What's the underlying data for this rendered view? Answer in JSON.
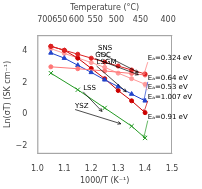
{
  "chart_data": {
    "type": "line",
    "xlabel": "1000/T (K⁻¹)",
    "ylabel": "Ln(σT) (SK cm⁻¹)",
    "x2label": "Temperature (°C)",
    "xlim": [
      1.0,
      1.5
    ],
    "ylim": [
      -2.5,
      5.0
    ],
    "x2lim": [
      1.0,
      1.5
    ],
    "xticks": [
      {
        "value": 1.0,
        "label": "1.0"
      },
      1.1,
      1.2,
      1.3,
      1.4,
      1.5
    ],
    "yticks": [
      {
        "value": -2,
        "label": "−2"
      },
      0,
      2,
      4
    ],
    "x2ticks": [
      {
        "value": 1.0275908,
        "label": "700"
      },
      {
        "value": 1.0832476,
        "label": "650"
      },
      {
        "value": 1.1452786,
        "label": "600"
      },
      {
        "value": 1.2148454,
        "label": "550"
      },
      {
        "value": 1.2934101,
        "label": "500"
      },
      {
        "value": 1.382839,
        "label": "450"
      },
      {
        "value": 1.485553,
        "label": "400"
      }
    ],
    "grid": false,
    "color": "#ffffff",
    "series": [
      {
        "color": "#dd2222",
        "marker": "circle",
        "line_style": "solid",
        "x": [
          1.05,
          1.1,
          1.15,
          1.2,
          1.25,
          1.3,
          1.35,
          1.4
        ],
        "values": [
          4.3,
          4.05,
          3.8,
          3.55,
          3.3,
          3.05,
          2.8,
          2.55
        ]
      },
      {
        "color": "#ff7777",
        "marker": "circle",
        "line_style": "solid",
        "x": [
          1.05,
          1.15,
          1.25,
          1.35,
          1.4
        ],
        "values": [
          3.0,
          2.88,
          2.74,
          2.58,
          2.48
        ]
      },
      {
        "color": "#2244cc",
        "marker": "triangle",
        "line_style": "solid",
        "x": [
          1.05,
          1.1,
          1.15,
          1.2,
          1.25,
          1.3,
          1.35,
          1.4
        ],
        "values": [
          3.88,
          3.55,
          3.1,
          2.65,
          2.18,
          1.75,
          1.28,
          0.85
        ]
      },
      {
        "color": "#cc0000",
        "marker": "circle",
        "line_style": "solid",
        "x": [
          1.05,
          1.1,
          1.15,
          1.2,
          1.25,
          1.3,
          1.35,
          1.4
        ],
        "values": [
          4.3,
          4.05,
          3.55,
          2.9,
          2.25,
          1.5,
          0.85,
          0.1
        ]
      },
      {
        "color": "#ff9999",
        "marker": "circle",
        "line_style": "solid",
        "x": [
          1.05,
          1.1,
          1.15,
          1.2,
          1.25,
          1.3,
          1.35,
          1.4
        ],
        "values": [
          4.15,
          3.85,
          3.56,
          3.27,
          2.97,
          2.6,
          2.25,
          1.9
        ]
      },
      {
        "color": "#229922",
        "marker": "cross",
        "line_style": "solid",
        "x": [
          1.05,
          1.15,
          1.25,
          1.35,
          1.4
        ],
        "values": [
          2.6,
          1.55,
          0.4,
          -0.75,
          -1.5
        ]
      }
    ],
    "annotations": [
      {
        "text": "SNS",
        "x": 1.225,
        "y": 3.95,
        "arrow_to": [
          1.375,
          2.65
        ],
        "arrow_color": "#000000"
      },
      {
        "text": "GDC",
        "x": 1.215,
        "y": 3.52,
        "arrow_to": [
          1.375,
          2.5
        ],
        "arrow_color": "#000000"
      },
      {
        "text": "LSGM",
        "x": 1.22,
        "y": 3.05,
        "arrow_to": [
          1.33,
          1.42
        ],
        "arrow_color": "#000000"
      },
      {
        "text": "LSS",
        "x": 1.17,
        "y": 1.42,
        "arrow_to": [
          1.24,
          0.18
        ],
        "arrow_color": "#000000"
      },
      {
        "text": "YSZ",
        "x": 1.14,
        "y": 0.3,
        "arrow_to": [
          1.31,
          -0.6
        ],
        "arrow_color": "#000000"
      },
      {
        "text": "Eₐ=0.324 eV",
        "x": 1.41,
        "y": 3.3,
        "arrow_to": [
          1.395,
          2.48
        ],
        "arrow_color": "#ff7777"
      },
      {
        "text": "Eₐ=0.64 eV",
        "x": 1.41,
        "y": 2.05,
        "arrow_to": [
          1.395,
          0.82
        ],
        "arrow_color": "#2244cc"
      },
      {
        "text": "Eₐ=0.53 eV",
        "x": 1.41,
        "y": 1.52,
        "arrow_to": [
          1.395,
          1.9
        ],
        "arrow_color": "#ff9999"
      },
      {
        "text": "Eₐ=1.007 eV",
        "x": 1.41,
        "y": 0.85,
        "arrow_to": [
          1.395,
          0.1
        ],
        "arrow_color": "#cc0000"
      },
      {
        "text": "Eₐ=0.91 eV",
        "x": 1.41,
        "y": -0.4,
        "arrow_to": [
          1.395,
          -1.5
        ],
        "arrow_color": "#229922"
      }
    ]
  }
}
